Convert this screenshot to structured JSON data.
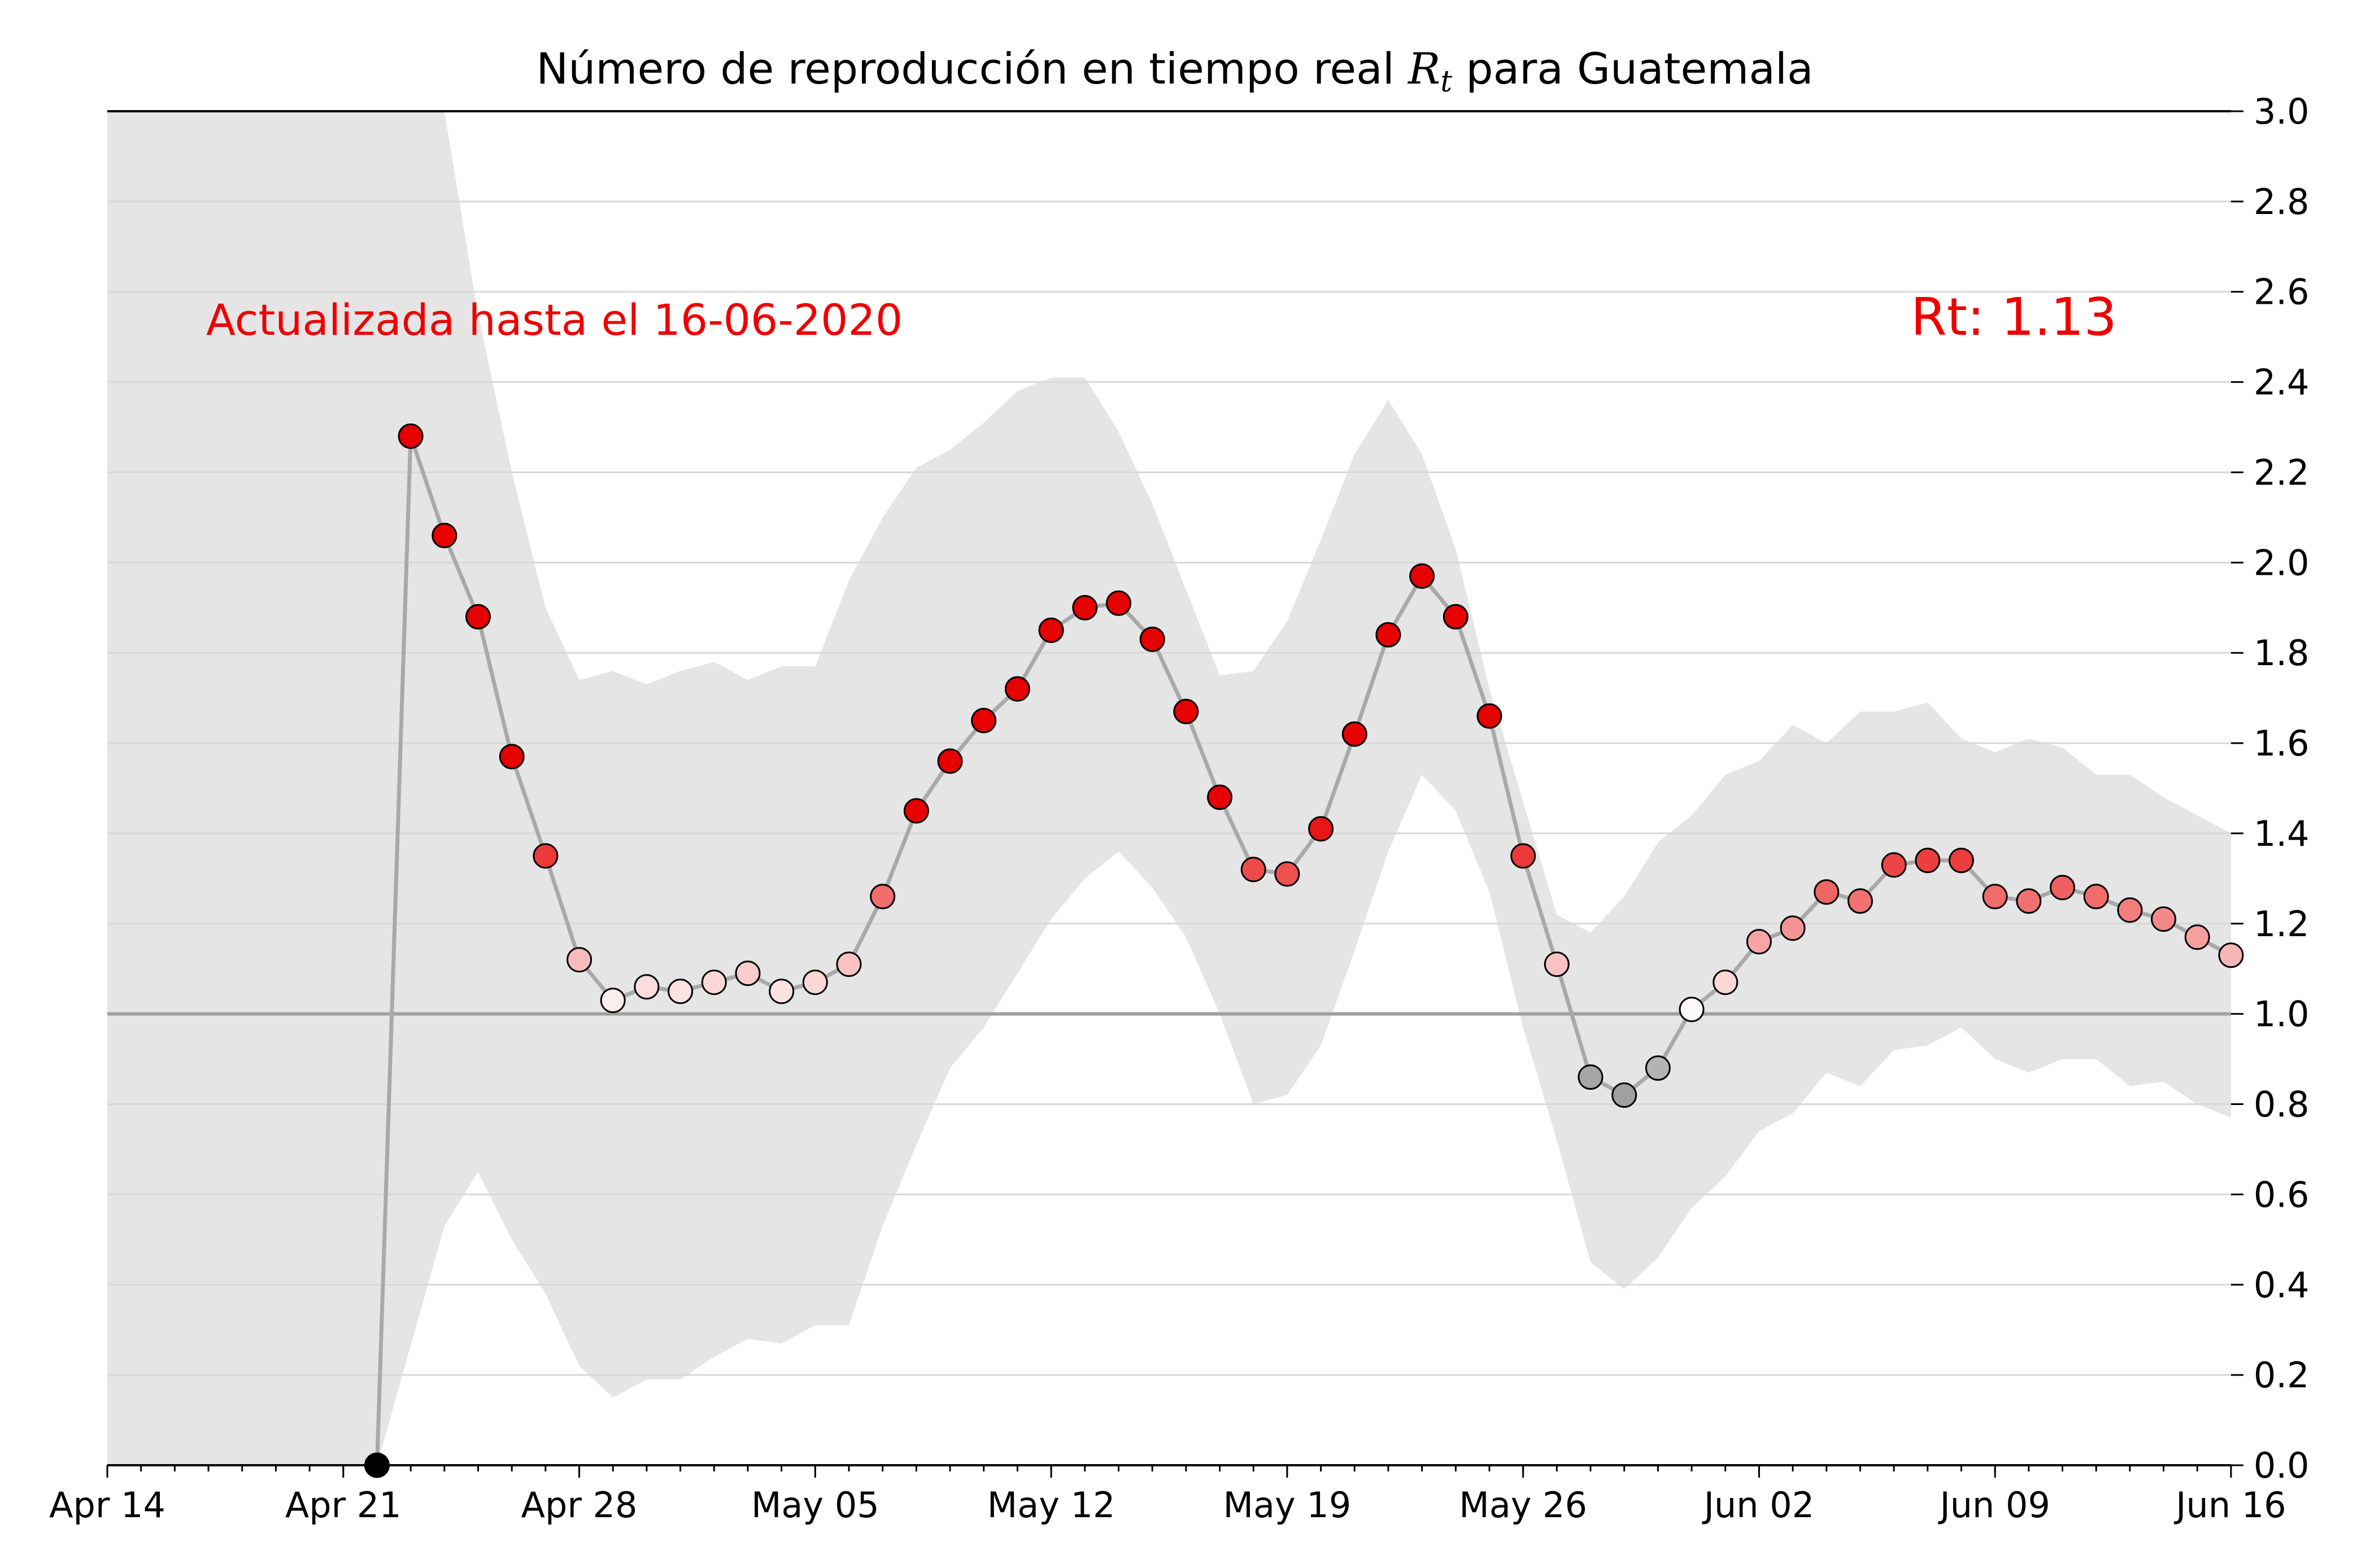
{
  "chart_data": {
    "type": "scatter",
    "title_prefix": "Número de reproducción en tiempo real ",
    "title_symbol": "R",
    "title_subscript": "t",
    "title_suffix": " para Guatemala",
    "annotation_left": "Actualizada hasta el 16-06-2020",
    "annotation_right": "Rt: 1.13",
    "xlabel": "",
    "ylabel": "",
    "ylim": [
      0,
      3.0
    ],
    "x_start": "2020-04-14",
    "x_end": "2020-06-16",
    "x_tick_labels": [
      {
        "date": "2020-04-14",
        "label": "Apr 14"
      },
      {
        "date": "2020-04-21",
        "label": "Apr 21"
      },
      {
        "date": "2020-04-28",
        "label": "Apr 28"
      },
      {
        "date": "2020-05-05",
        "label": "May 05"
      },
      {
        "date": "2020-05-12",
        "label": "May 12"
      },
      {
        "date": "2020-05-19",
        "label": "May 19"
      },
      {
        "date": "2020-05-26",
        "label": "May 26"
      },
      {
        "date": "2020-06-02",
        "label": "Jun 02"
      },
      {
        "date": "2020-06-09",
        "label": "Jun 09"
      },
      {
        "date": "2020-06-16",
        "label": "Jun 16"
      }
    ],
    "y_ticks": [
      "0.0",
      "0.2",
      "0.4",
      "0.6",
      "0.8",
      "1.0",
      "1.2",
      "1.4",
      "1.6",
      "1.8",
      "2.0",
      "2.2",
      "2.4",
      "2.6",
      "2.8",
      "3.0"
    ],
    "reference_line": 1.0,
    "grid": "horizontal",
    "axis_position": "right",
    "colors": {
      "band": "#e5e5e5",
      "line": "#a9a9a9",
      "reference": "#a0a0a0",
      "annotation": "#ee0000",
      "high": "#e60000",
      "neutral": "#ffffff",
      "low": "#a0a0a0"
    },
    "band": {
      "dates": [
        "2020-04-14",
        "2020-04-22",
        "2020-04-24",
        "2020-04-25",
        "2020-04-26",
        "2020-04-27",
        "2020-04-28",
        "2020-04-29",
        "2020-04-30",
        "2020-05-01",
        "2020-05-02",
        "2020-05-03",
        "2020-05-04",
        "2020-05-05",
        "2020-05-06",
        "2020-05-07",
        "2020-05-08",
        "2020-05-09",
        "2020-05-10",
        "2020-05-11",
        "2020-05-12",
        "2020-05-13",
        "2020-05-14",
        "2020-05-15",
        "2020-05-16",
        "2020-05-17",
        "2020-05-18",
        "2020-05-19",
        "2020-05-20",
        "2020-05-21",
        "2020-05-22",
        "2020-05-23",
        "2020-05-24",
        "2020-05-25",
        "2020-05-26",
        "2020-05-27",
        "2020-05-28",
        "2020-05-29",
        "2020-05-30",
        "2020-05-31",
        "2020-06-01",
        "2020-06-02",
        "2020-06-03",
        "2020-06-04",
        "2020-06-05",
        "2020-06-06",
        "2020-06-07",
        "2020-06-08",
        "2020-06-09",
        "2020-06-10",
        "2020-06-11",
        "2020-06-12",
        "2020-06-13",
        "2020-06-14",
        "2020-06-15",
        "2020-06-16"
      ],
      "upper": [
        3.0,
        3.0,
        3.0,
        2.55,
        2.2,
        1.9,
        1.74,
        1.76,
        1.73,
        1.76,
        1.78,
        1.74,
        1.77,
        1.77,
        1.96,
        2.1,
        2.21,
        2.25,
        2.31,
        2.38,
        2.41,
        2.41,
        2.29,
        2.13,
        1.94,
        1.75,
        1.76,
        1.87,
        2.05,
        2.24,
        2.36,
        2.24,
        2.03,
        1.72,
        1.47,
        1.22,
        1.18,
        1.26,
        1.38,
        1.44,
        1.53,
        1.56,
        1.64,
        1.6,
        1.67,
        1.67,
        1.69,
        1.61,
        1.58,
        1.61,
        1.59,
        1.53,
        1.53,
        1.48,
        1.44,
        1.4
      ],
      "lower": [
        0.0,
        0.0,
        0.53,
        0.65,
        0.5,
        0.38,
        0.22,
        0.15,
        0.19,
        0.19,
        0.24,
        0.28,
        0.27,
        0.31,
        0.31,
        0.53,
        0.71,
        0.88,
        0.97,
        1.09,
        1.21,
        1.3,
        1.36,
        1.28,
        1.17,
        1.0,
        0.8,
        0.82,
        0.93,
        1.14,
        1.36,
        1.53,
        1.45,
        1.27,
        0.97,
        0.72,
        0.45,
        0.39,
        0.46,
        0.57,
        0.64,
        0.74,
        0.78,
        0.87,
        0.84,
        0.92,
        0.93,
        0.97,
        0.9,
        0.87,
        0.9,
        0.9,
        0.84,
        0.85,
        0.8,
        0.77
      ]
    },
    "series": [
      {
        "dates": [
          "2020-04-22",
          "2020-04-23",
          "2020-04-24",
          "2020-04-25",
          "2020-04-26",
          "2020-04-27",
          "2020-04-28",
          "2020-04-29",
          "2020-04-30",
          "2020-05-01",
          "2020-05-02",
          "2020-05-03",
          "2020-05-04",
          "2020-05-05",
          "2020-05-06",
          "2020-05-07",
          "2020-05-08",
          "2020-05-09",
          "2020-05-10",
          "2020-05-11",
          "2020-05-12",
          "2020-05-13",
          "2020-05-14",
          "2020-05-15",
          "2020-05-16",
          "2020-05-17",
          "2020-05-18",
          "2020-05-19",
          "2020-05-20",
          "2020-05-21",
          "2020-05-22",
          "2020-05-23",
          "2020-05-24",
          "2020-05-25",
          "2020-05-26",
          "2020-05-27",
          "2020-05-28",
          "2020-05-29",
          "2020-05-30",
          "2020-05-31",
          "2020-06-01",
          "2020-06-02",
          "2020-06-03",
          "2020-06-04",
          "2020-06-05",
          "2020-06-06",
          "2020-06-07",
          "2020-06-08",
          "2020-06-09",
          "2020-06-10",
          "2020-06-11",
          "2020-06-12",
          "2020-06-13",
          "2020-06-14",
          "2020-06-15",
          "2020-06-16"
        ],
        "values": [
          0.0,
          2.28,
          2.06,
          1.88,
          1.57,
          1.35,
          1.12,
          1.03,
          1.06,
          1.05,
          1.07,
          1.09,
          1.05,
          1.07,
          1.11,
          1.26,
          1.45,
          1.56,
          1.65,
          1.72,
          1.85,
          1.9,
          1.91,
          1.83,
          1.67,
          1.48,
          1.32,
          1.31,
          1.41,
          1.62,
          1.84,
          1.97,
          1.88,
          1.66,
          1.35,
          1.11,
          0.86,
          0.82,
          0.88,
          1.01,
          1.07,
          1.16,
          1.19,
          1.27,
          1.25,
          1.33,
          1.34,
          1.34,
          1.26,
          1.25,
          1.28,
          1.26,
          1.23,
          1.21,
          1.17,
          1.13
        ]
      }
    ]
  }
}
